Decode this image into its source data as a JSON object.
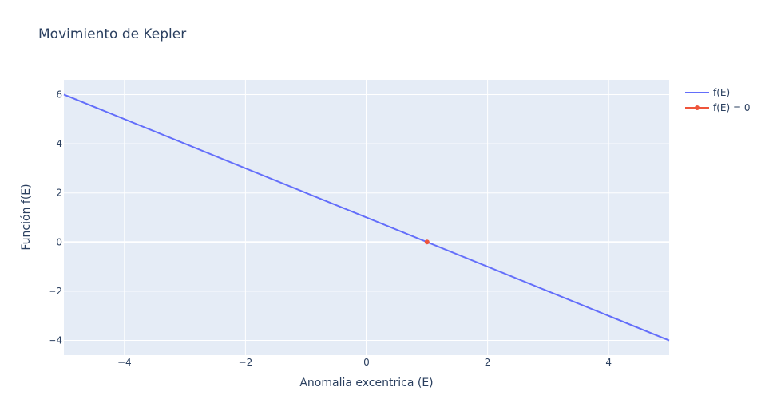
{
  "chart_data": {
    "type": "line",
    "title": "Movimiento de Kepler",
    "xlabel": "Anomalia excentrica (E)",
    "ylabel": "Función f(E)",
    "xlim": [
      -5,
      5
    ],
    "ylim": [
      -4.6,
      6.6
    ],
    "xticks": [
      -4,
      -2,
      0,
      2,
      4
    ],
    "yticks": [
      -4,
      -2,
      0,
      2,
      4,
      6
    ],
    "xtick_labels": [
      "−4",
      "−2",
      "0",
      "2",
      "4"
    ],
    "ytick_labels": [
      "−4",
      "−2",
      "0",
      "2",
      "4",
      "6"
    ],
    "grid": true,
    "legend_position": "top-right outside",
    "series": [
      {
        "name": "f(E)",
        "mode": "lines",
        "color": "#636efa",
        "x": [
          -5,
          5
        ],
        "y": [
          6,
          -4
        ]
      },
      {
        "name": "f(E) = 0",
        "mode": "lines+markers",
        "color": "#ef553b",
        "x": [
          1
        ],
        "y": [
          0
        ]
      }
    ]
  },
  "colors": {
    "plot_background": "#e5ecf6",
    "gridline": "#ffffff",
    "text": "#2a3f5f"
  }
}
